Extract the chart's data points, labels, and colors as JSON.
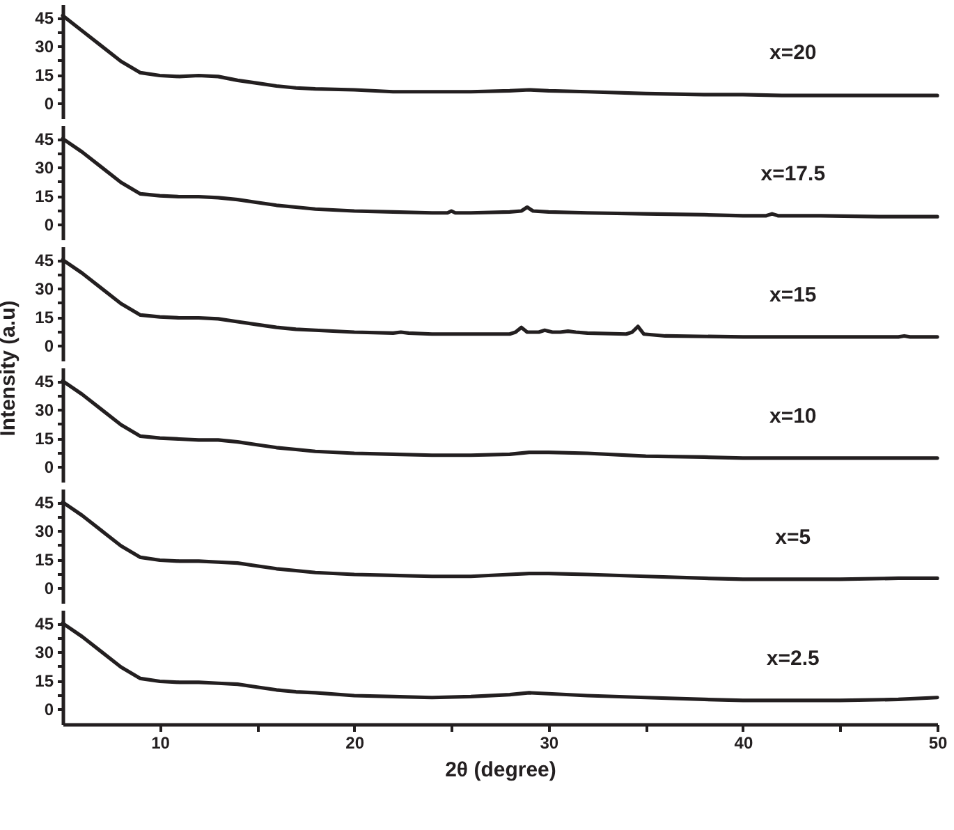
{
  "chart_data": [
    {
      "type": "line",
      "tick_labels": "y",
      "xlim": [
        5,
        50
      ],
      "ylim": [
        -8,
        52
      ],
      "yticks": [
        0,
        {
          "value": 7.5,
          "label": null
        },
        15,
        {
          "value": 22.5,
          "label": null
        },
        30,
        {
          "value": 37.5,
          "label": null
        },
        45
      ],
      "annotations": [
        "x=20"
      ],
      "series": [
        {
          "color": "#231f20",
          "x": [
            5,
            6,
            7,
            8,
            9,
            10,
            11,
            12,
            13,
            14,
            15,
            16,
            17,
            18,
            20,
            22,
            24,
            26,
            28,
            29,
            30,
            32,
            35,
            38,
            40,
            42,
            45,
            48,
            50
          ],
          "values": [
            46,
            38,
            30,
            22,
            16,
            14.5,
            14,
            14.5,
            14,
            12,
            10.5,
            9,
            8,
            7.5,
            7,
            6,
            6,
            6,
            6.5,
            7,
            6.5,
            6,
            5,
            4.5,
            4.5,
            4,
            4,
            4,
            4
          ]
        }
      ]
    },
    {
      "type": "line",
      "tick_labels": "y",
      "xlim": [
        5,
        50
      ],
      "ylim": [
        -8,
        52
      ],
      "yticks": [
        0,
        {
          "value": 7.5,
          "label": null
        },
        15,
        {
          "value": 22.5,
          "label": null
        },
        30,
        {
          "value": 37.5,
          "label": null
        },
        45
      ],
      "annotations": [
        "x=17.5"
      ],
      "series": [
        {
          "color": "#231f20",
          "x": [
            5,
            6,
            7,
            8,
            9,
            10,
            11,
            12,
            13,
            14,
            15,
            16,
            17,
            18,
            20,
            22,
            24,
            24.8,
            25,
            25.2,
            26,
            28,
            28.6,
            28.9,
            29.2,
            30,
            32,
            35,
            38,
            40,
            41.2,
            41.5,
            41.8,
            44,
            47,
            50
          ],
          "values": [
            45,
            38,
            30,
            22,
            16,
            15,
            14.5,
            14.5,
            14,
            13,
            11.5,
            10,
            9,
            8,
            7,
            6.5,
            6,
            6,
            7,
            6,
            6,
            6.5,
            7,
            9,
            7,
            6.5,
            6,
            5.5,
            5,
            4.5,
            4.5,
            5.5,
            4.5,
            4.5,
            4,
            4
          ]
        }
      ]
    },
    {
      "type": "line",
      "tick_labels": "y",
      "xlim": [
        5,
        50
      ],
      "ylim": [
        -8,
        52
      ],
      "yticks": [
        0,
        {
          "value": 7.5,
          "label": null
        },
        15,
        {
          "value": 22.5,
          "label": null
        },
        30,
        {
          "value": 37.5,
          "label": null
        },
        45
      ],
      "annotations": [
        "x=15"
      ],
      "series": [
        {
          "color": "#231f20",
          "x": [
            5,
            6,
            7,
            8,
            9,
            10,
            11,
            12,
            13,
            14,
            15,
            16,
            17,
            18,
            20,
            22,
            22.4,
            22.8,
            24,
            26,
            28,
            28.3,
            28.6,
            28.9,
            29.5,
            29.8,
            30.2,
            30.6,
            31,
            31.4,
            32,
            34,
            34.3,
            34.6,
            34.9,
            36,
            40,
            44,
            48,
            48.3,
            48.6,
            50
          ],
          "values": [
            45,
            38,
            30,
            22,
            16,
            15,
            14.5,
            14.5,
            14,
            12.5,
            11,
            9.5,
            8.5,
            8,
            7,
            6.5,
            7,
            6.5,
            6,
            6,
            6,
            7,
            9.5,
            7,
            7,
            8,
            7,
            7,
            7.5,
            7,
            6.5,
            6,
            7,
            10,
            6,
            5,
            4.5,
            4.5,
            4.5,
            5,
            4.5,
            4.5
          ]
        }
      ]
    },
    {
      "type": "line",
      "tick_labels": "y",
      "xlim": [
        5,
        50
      ],
      "ylim": [
        -8,
        52
      ],
      "yticks": [
        0,
        {
          "value": 7.5,
          "label": null
        },
        15,
        {
          "value": 22.5,
          "label": null
        },
        30,
        {
          "value": 37.5,
          "label": null
        },
        45
      ],
      "ylabel": "Intensity (a.u)",
      "annotations": [
        "x=10"
      ],
      "series": [
        {
          "color": "#231f20",
          "x": [
            5,
            6,
            7,
            8,
            9,
            10,
            11,
            12,
            13,
            14,
            15,
            16,
            17,
            18,
            20,
            22,
            24,
            26,
            28,
            29,
            30,
            32,
            35,
            38,
            40,
            42,
            45,
            48,
            50
          ],
          "values": [
            45,
            38,
            30,
            22,
            16,
            15,
            14.5,
            14,
            14,
            13,
            11.5,
            10,
            9,
            8,
            7,
            6.5,
            6,
            6,
            6.5,
            7.5,
            7.5,
            7,
            5.5,
            5,
            4.5,
            4.5,
            4.5,
            4.5,
            4.5
          ]
        }
      ]
    },
    {
      "type": "line",
      "tick_labels": "y",
      "xlim": [
        5,
        50
      ],
      "ylim": [
        -8,
        52
      ],
      "yticks": [
        0,
        {
          "value": 7.5,
          "label": null
        },
        15,
        {
          "value": 22.5,
          "label": null
        },
        30,
        {
          "value": 37.5,
          "label": null
        },
        45
      ],
      "annotations": [
        "x=5"
      ],
      "series": [
        {
          "color": "#231f20",
          "x": [
            5,
            6,
            7,
            8,
            9,
            10,
            11,
            12,
            13,
            14,
            15,
            16,
            17,
            18,
            20,
            22,
            24,
            26,
            28,
            29,
            30,
            32,
            35,
            38,
            40,
            42,
            45,
            48,
            50
          ],
          "values": [
            45,
            38,
            30,
            22,
            16,
            14.5,
            14,
            14,
            13.5,
            13,
            11.5,
            10,
            9,
            8,
            7,
            6.5,
            6,
            6,
            7,
            7.5,
            7.5,
            7,
            6,
            5,
            4.5,
            4.5,
            4.5,
            5,
            5
          ]
        }
      ]
    },
    {
      "type": "line",
      "xlim": [
        5,
        50
      ],
      "ylim": [
        -8,
        52
      ],
      "yticks": [
        0,
        {
          "value": 7.5,
          "label": null
        },
        15,
        {
          "value": 22.5,
          "label": null
        },
        30,
        {
          "value": 37.5,
          "label": null
        },
        45
      ],
      "xticks": [
        10,
        {
          "value": 15,
          "label": null
        },
        20,
        {
          "value": 25,
          "label": null
        },
        30,
        {
          "value": 35,
          "label": null
        },
        40,
        {
          "value": 45,
          "label": null
        },
        50
      ],
      "xlabel": "2θ (degree)",
      "annotations": [
        "x=2.5"
      ],
      "series": [
        {
          "color": "#231f20",
          "x": [
            5,
            6,
            7,
            8,
            9,
            10,
            11,
            12,
            13,
            14,
            15,
            16,
            17,
            18,
            20,
            22,
            24,
            26,
            28,
            29,
            30,
            32,
            35,
            38,
            40,
            42,
            45,
            48,
            50
          ],
          "values": [
            45,
            38,
            30,
            22,
            16,
            14.5,
            14,
            14,
            13.5,
            13,
            11.5,
            10,
            9,
            8.5,
            7,
            6.5,
            6,
            6.5,
            7.5,
            8.5,
            8,
            7,
            6,
            5,
            4.5,
            4.5,
            4.5,
            5,
            6
          ]
        }
      ]
    }
  ]
}
